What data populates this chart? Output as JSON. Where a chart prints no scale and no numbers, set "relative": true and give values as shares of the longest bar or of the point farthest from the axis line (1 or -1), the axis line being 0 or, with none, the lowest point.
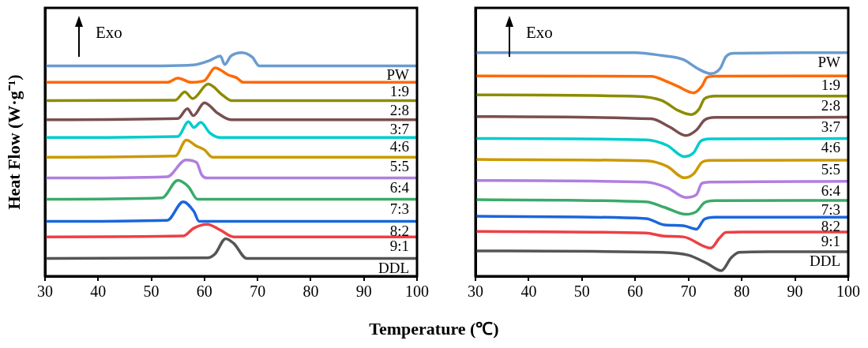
{
  "chart_data": [
    {
      "type": "line",
      "relative": true,
      "tick_labels": "x",
      "marker": "none",
      "ylabel": "Heat Flow (W·g⁻¹)",
      "xlabel": "Temperature (℃)",
      "annotations": [
        "Exo"
      ],
      "xlim": [
        30,
        100
      ],
      "xticks": [
        30,
        40,
        50,
        60,
        70,
        80,
        90,
        100
      ],
      "series": [
        {
          "name": "PW",
          "color": "#6a9bd0",
          "x": [
            30,
            52,
            58,
            61,
            63,
            63.8,
            65,
            67,
            69,
            70.3,
            100
          ],
          "values": [
            0.941,
            0.941,
            0.945,
            0.965,
            0.985,
            0.947,
            0.985,
            1.0,
            0.98,
            0.941,
            0.941
          ]
        },
        {
          "name": "1:9",
          "color": "#ff6a00",
          "x": [
            30,
            53,
            55,
            57.5,
            60,
            62,
            64.5,
            66,
            67.3,
            100
          ],
          "values": [
            0.867,
            0.867,
            0.886,
            0.867,
            0.875,
            0.932,
            0.9,
            0.888,
            0.867,
            0.867
          ]
        },
        {
          "name": "2:8",
          "color": "#8c8c00",
          "x": [
            30,
            54.5,
            56.3,
            57.8,
            60.7,
            63.5,
            65.2,
            100
          ],
          "values": [
            0.785,
            0.787,
            0.824,
            0.794,
            0.859,
            0.808,
            0.785,
            0.785
          ]
        },
        {
          "name": "3:7",
          "color": "#7a4f4f",
          "x": [
            30,
            55,
            56.8,
            57.9,
            60,
            62.5,
            65,
            100
          ],
          "values": [
            0.7,
            0.705,
            0.749,
            0.718,
            0.776,
            0.729,
            0.7,
            0.7
          ]
        },
        {
          "name": "4:6",
          "color": "#00cccc",
          "x": [
            30,
            55,
            57,
            58,
            59.3,
            61,
            63,
            100
          ],
          "values": [
            0.62,
            0.625,
            0.691,
            0.665,
            0.688,
            0.641,
            0.62,
            0.62
          ]
        },
        {
          "name": "5:5",
          "color": "#cc9900",
          "x": [
            30,
            54.5,
            56.6,
            58.5,
            60,
            61.5,
            100
          ],
          "values": [
            0.532,
            0.537,
            0.609,
            0.582,
            0.565,
            0.532,
            0.532
          ]
        },
        {
          "name": "6:4",
          "color": "#b07ee0",
          "x": [
            30,
            53,
            56.5,
            58.5,
            59.5,
            60.5,
            100
          ],
          "values": [
            0.439,
            0.445,
            0.52,
            0.509,
            0.453,
            0.439,
            0.439
          ]
        },
        {
          "name": "7:3",
          "color": "#3aaa6a",
          "x": [
            30,
            52,
            55,
            57,
            58.7,
            100
          ],
          "values": [
            0.344,
            0.35,
            0.429,
            0.4,
            0.344,
            0.344
          ]
        },
        {
          "name": "8:2",
          "color": "#1a66dd",
          "x": [
            30,
            53,
            56,
            58,
            59,
            100
          ],
          "values": [
            0.245,
            0.25,
            0.333,
            0.29,
            0.245,
            0.245
          ]
        },
        {
          "name": "9:1",
          "color": "#ee3f45",
          "x": [
            30,
            56,
            58,
            60.5,
            63,
            65.5,
            100
          ],
          "values": [
            0.176,
            0.18,
            0.215,
            0.232,
            0.206,
            0.176,
            0.176
          ]
        },
        {
          "name": "DDL",
          "color": "#555555",
          "x": [
            30,
            60.5,
            62,
            64,
            65.5,
            68,
            100
          ],
          "values": [
            0.079,
            0.082,
            0.1,
            0.168,
            0.147,
            0.079,
            0.079
          ]
        }
      ]
    },
    {
      "type": "line",
      "relative": true,
      "tick_labels": "x",
      "marker": "none",
      "annotations": [
        "Exo"
      ],
      "xlim": [
        30,
        100
      ],
      "xticks": [
        30,
        40,
        50,
        60,
        70,
        80,
        90,
        100
      ],
      "series": [
        {
          "name": "PW",
          "color": "#6a9bd0",
          "x": [
            30,
            60,
            65,
            69,
            72,
            74.2,
            76,
            77,
            78.5,
            100
          ],
          "values": [
            1.0,
            1.0,
            0.987,
            0.969,
            0.925,
            0.906,
            0.931,
            0.981,
            0.997,
            1.0
          ]
        },
        {
          "name": "1:9",
          "color": "#ff6a00",
          "x": [
            30,
            63,
            66,
            68,
            71,
            72.5,
            73.5,
            75,
            100
          ],
          "values": [
            0.896,
            0.894,
            0.87,
            0.849,
            0.82,
            0.849,
            0.89,
            0.895,
            0.896
          ]
        },
        {
          "name": "2:8",
          "color": "#8c8c00",
          "x": [
            30,
            60,
            65,
            68,
            70.5,
            72,
            73,
            75,
            100
          ],
          "values": [
            0.811,
            0.805,
            0.786,
            0.742,
            0.723,
            0.748,
            0.794,
            0.806,
            0.806
          ]
        },
        {
          "name": "3:7",
          "color": "#7a4f4f",
          "x": [
            30,
            63,
            66.5,
            69.5,
            71.5,
            73,
            75,
            100
          ],
          "values": [
            0.714,
            0.704,
            0.667,
            0.629,
            0.654,
            0.698,
            0.71,
            0.711
          ]
        },
        {
          "name": "4:6",
          "color": "#00cccc",
          "x": [
            30,
            62,
            66,
            69.2,
            71,
            72.3,
            74,
            100
          ],
          "values": [
            0.616,
            0.61,
            0.585,
            0.535,
            0.553,
            0.604,
            0.614,
            0.616
          ]
        },
        {
          "name": "5:5",
          "color": "#cc9900",
          "x": [
            30,
            62,
            66,
            69.2,
            71,
            72.5,
            74,
            100
          ],
          "values": [
            0.522,
            0.516,
            0.491,
            0.44,
            0.459,
            0.509,
            0.518,
            0.519
          ]
        },
        {
          "name": "6:4",
          "color": "#b07ee0",
          "x": [
            30,
            62,
            66,
            69.5,
            71.5,
            72.5,
            74,
            100
          ],
          "values": [
            0.428,
            0.421,
            0.396,
            0.352,
            0.365,
            0.415,
            0.421,
            0.424
          ]
        },
        {
          "name": "7:3",
          "color": "#3aaa6a",
          "x": [
            30,
            62,
            65.5,
            69.5,
            71.5,
            73,
            75,
            100
          ],
          "values": [
            0.342,
            0.333,
            0.308,
            0.277,
            0.289,
            0.329,
            0.338,
            0.339
          ]
        },
        {
          "name": "8:2",
          "color": "#1a66dd",
          "x": [
            30,
            62,
            65.5,
            69,
            71.5,
            73,
            75,
            100
          ],
          "values": [
            0.268,
            0.258,
            0.229,
            0.226,
            0.21,
            0.255,
            0.264,
            0.264
          ]
        },
        {
          "name": "9:1",
          "color": "#ee3f45",
          "x": [
            30,
            62,
            65.5,
            69,
            74.2,
            75.8,
            77,
            80,
            100
          ],
          "values": [
            0.2,
            0.193,
            0.179,
            0.176,
            0.126,
            0.17,
            0.196,
            0.198,
            0.198
          ]
        },
        {
          "name": "DDL",
          "color": "#555555",
          "x": [
            30,
            65,
            70,
            73.5,
            76.2,
            78,
            79.5,
            85,
            100
          ],
          "values": [
            0.113,
            0.107,
            0.094,
            0.057,
            0.025,
            0.082,
            0.107,
            0.109,
            0.109
          ]
        }
      ]
    }
  ]
}
